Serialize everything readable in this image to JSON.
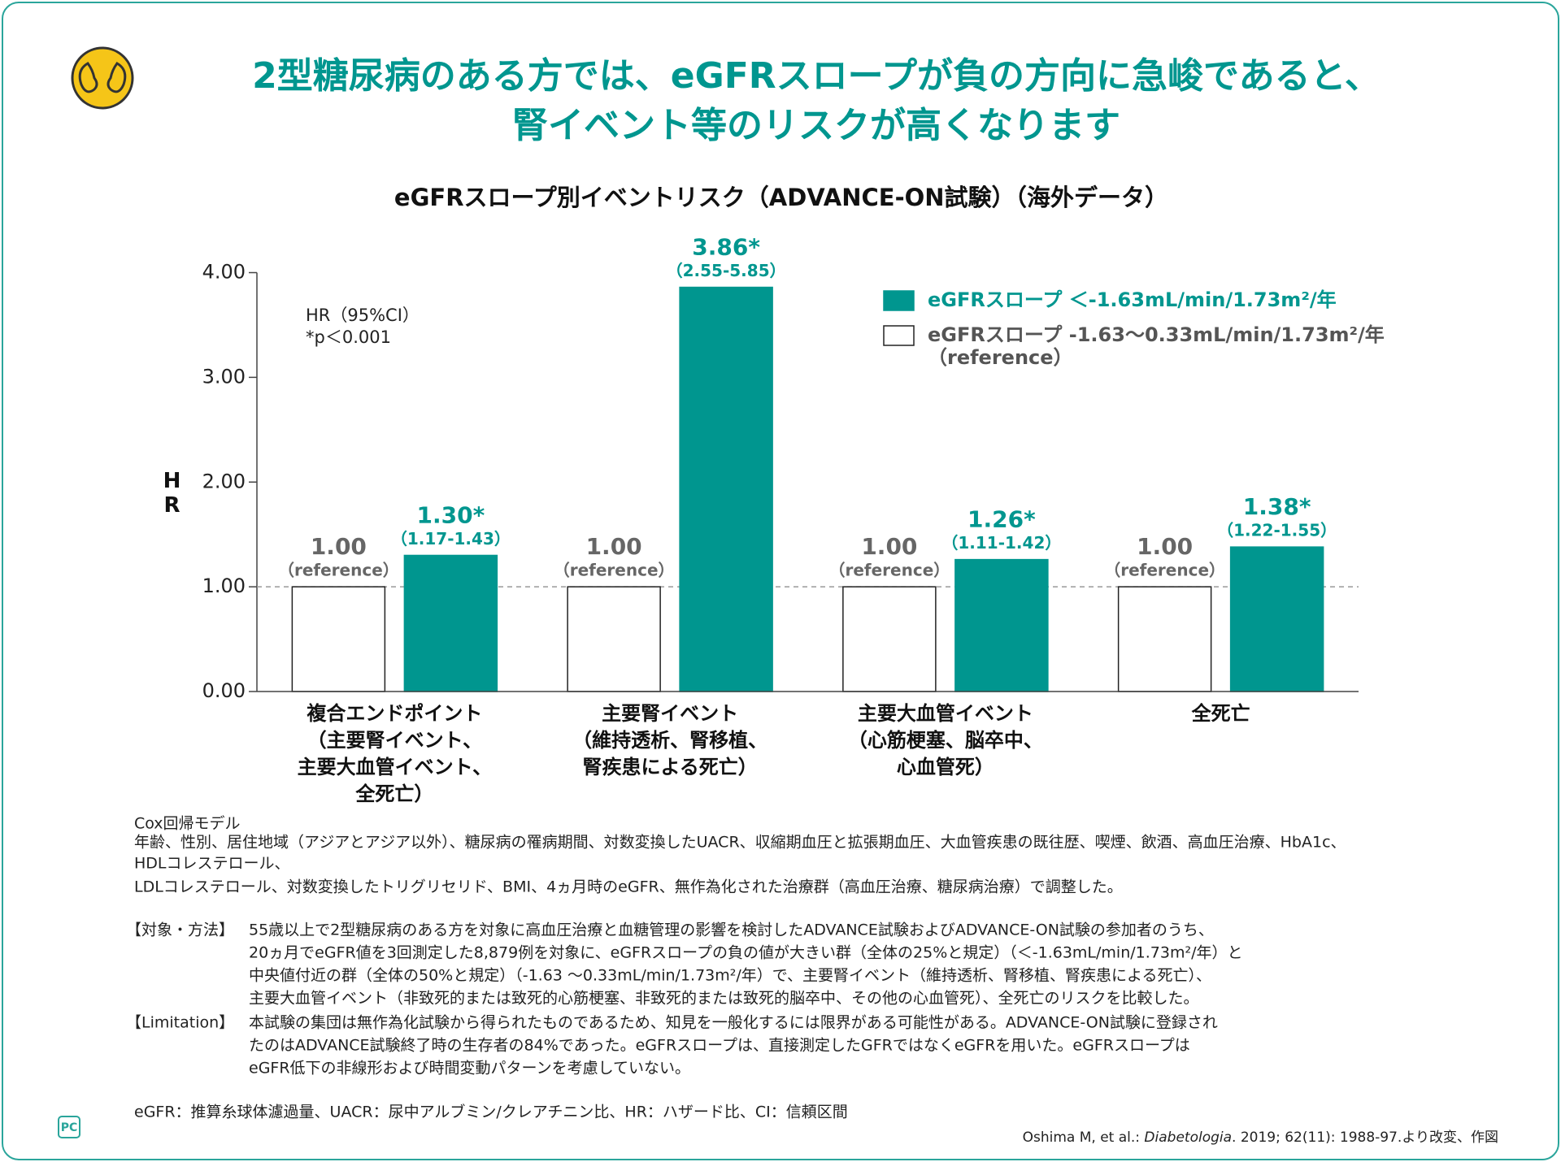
{
  "header": {
    "title_lines": [
      "2型糖尿病のある方では、eGFRスロープが負の方向に急峻であると、",
      "腎イベント等のリスクが高くなります"
    ]
  },
  "chart_data": {
    "type": "bar",
    "title": "eGFRスロープ別イベントリスク（ADVANCE-ON試験）（海外データ）",
    "y_label": "HR",
    "annotations": [
      "HR（95%CI）",
      "*p＜0.001"
    ],
    "categories": [
      [
        "複合エンドポイント",
        "（主要腎イベント、",
        "主要大血管イベント、",
        "全死亡）"
      ],
      [
        "主要腎イベント",
        "（維持透析、腎移植、",
        "腎疾患による死亡）"
      ],
      [
        "主要大血管イベント",
        "（心筋梗塞、脳卒中、",
        "心血管死）"
      ],
      [
        "全死亡"
      ]
    ],
    "series": [
      {
        "name": "eGFRスロープ -1.63～0.33mL/min/1.73m²/年",
        "name_note": "（reference）",
        "color": "#ffffff",
        "values": [
          1,
          1,
          1,
          1
        ],
        "value_labels": [
          "1.00",
          "1.00",
          "1.00",
          "1.00"
        ],
        "ci_labels": [
          "（reference）",
          "（reference）",
          "（reference）",
          "（reference）"
        ]
      },
      {
        "name": "eGFRスロープ ＜-1.63mL/min/1.73m²/年",
        "color": "#00968f",
        "values": [
          1.3,
          3.86,
          1.26,
          1.38
        ],
        "value_labels": [
          "1.30*",
          "3.86*",
          "1.26*",
          "1.38*"
        ],
        "ci_labels": [
          "（1.17-1.43）",
          "（2.55-5.85）",
          "（1.11-1.42）",
          "（1.22-1.55）"
        ]
      }
    ],
    "ylim": [
      0,
      4
    ],
    "yticks": [
      {
        "value": 0,
        "label": "0.00"
      },
      {
        "value": 1,
        "label": "1.00"
      },
      {
        "value": 2,
        "label": "2.00"
      },
      {
        "value": 3,
        "label": "3.00"
      },
      {
        "value": 4,
        "label": "4.00"
      }
    ],
    "reference_line": 1,
    "legend": "top-right"
  },
  "notes": {
    "model": [
      "Cox回帰モデル",
      "年齢、性別、居住地域（アジアとアジア以外）、糖尿病の罹病期間、対数変換したUACR、収縮期血圧と拡張期血圧、大血管疾患の既往歴、喫煙、飲酒、高血圧治療、HbA1c、",
      "HDLコレステロール、",
      "LDLコレステロール、対数変換したトリグリセリド、BMI、4ヵ月時のeGFR、無作為化された治療群（高血圧治療、糖尿病治療）で調整した。"
    ],
    "method": {
      "label": "【対象・方法】",
      "lines": [
        "55歳以上で2型糖尿病のある方を対象に高血圧治療と血糖管理の影響を検討したADVANCE試験およびADVANCE-ON試験の参加者のうち、",
        "20ヵ月でeGFR値を3回測定した8,879例を対象に、eGFRスロープの負の値が大きい群（全体の25%と規定）（＜-1.63mL/min/1.73m²/年）と",
        "中央値付近の群（全体の50%と規定）（-1.63 ～0.33mL/min/1.73m²/年）で、主要腎イベント（維持透析、腎移植、腎疾患による死亡）、",
        "主要大血管イベント（非致死的または致死的心筋梗塞、非致死的または致死的脳卒中、その他の心血管死）、全死亡のリスクを比較した。"
      ]
    },
    "limitation": {
      "label": "【Limitation】",
      "lines": [
        "本試験の集団は無作為化試験から得られたものであるため、知見を一般化するには限界がある可能性がある。ADVANCE-ON試験に登録され",
        "たのはADVANCE試験終了時の生存者の84%であった。eGFRスロープは、直接測定したGFRではなくeGFRを用いた。eGFRスロープは",
        "eGFR低下の非線形および時間変動パターンを考慮していない。"
      ]
    },
    "abbreviations": "eGFR：推算糸球体濾過量、UACR：尿中アルブミン/クレアチニン比、HR：ハザード比、CI：信頼区間",
    "citation": [
      "Oshima M, et al.: ",
      "Diabetologia",
      ". 2019; 62(11): 1988-97.より改変、作図"
    ]
  },
  "logo": "PC"
}
